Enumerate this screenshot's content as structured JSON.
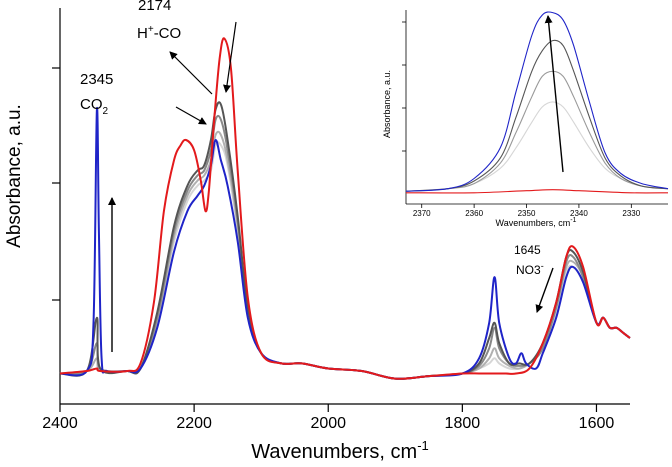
{
  "chart_data": [
    {
      "id": "main",
      "type": "line",
      "title": "",
      "xlabel": "Wavenumbers, cm",
      "xlabel_sup": "-1",
      "ylabel": "Absorbance, a.u.",
      "xlim": [
        2400,
        1550
      ],
      "ylim": [
        -0.06,
        0.72
      ],
      "x_ticks": [
        2400,
        2200,
        2000,
        1800,
        1600
      ],
      "x_tick_labels": [
        "2400",
        "2200",
        "2000",
        "1800",
        "1600"
      ],
      "grid": false,
      "series": [
        {
          "name": "spectrum-1",
          "color": "#d6d6d6",
          "x": [
            2400,
            2360,
            2345,
            2340,
            2300,
            2280,
            2255,
            2230,
            2210,
            2195,
            2185,
            2175,
            2168,
            2160,
            2150,
            2135,
            2120,
            2100,
            2070,
            2040,
            2000,
            1950,
            1900,
            1850,
            1800,
            1775,
            1760,
            1752,
            1745,
            1730,
            1715,
            1700,
            1680,
            1660,
            1645,
            1635,
            1620,
            1600,
            1590,
            1580,
            1570,
            1560,
            1550
          ],
          "y": [
            0.0,
            0.005,
            0.01,
            0.005,
            0.005,
            0.01,
            0.1,
            0.26,
            0.34,
            0.37,
            0.38,
            0.4,
            0.45,
            0.45,
            0.41,
            0.28,
            0.12,
            0.04,
            0.02,
            0.02,
            0.01,
            0.005,
            -0.01,
            -0.005,
            0.0,
            0.01,
            0.02,
            0.03,
            0.02,
            0.01,
            0.01,
            0.02,
            0.05,
            0.12,
            0.2,
            0.21,
            0.18,
            0.1,
            0.11,
            0.09,
            0.09,
            0.08,
            0.07
          ]
        },
        {
          "name": "spectrum-2",
          "color": "#b0b0b0",
          "x": [
            2400,
            2360,
            2345,
            2340,
            2300,
            2280,
            2255,
            2230,
            2210,
            2195,
            2185,
            2175,
            2168,
            2160,
            2150,
            2135,
            2120,
            2100,
            2070,
            2040,
            2000,
            1950,
            1900,
            1850,
            1800,
            1775,
            1760,
            1752,
            1745,
            1730,
            1715,
            1700,
            1680,
            1660,
            1645,
            1635,
            1620,
            1600,
            1590,
            1580,
            1570,
            1560,
            1550
          ],
          "y": [
            0.0,
            0.005,
            0.03,
            0.005,
            0.005,
            0.01,
            0.1,
            0.27,
            0.35,
            0.38,
            0.39,
            0.42,
            0.47,
            0.47,
            0.42,
            0.29,
            0.12,
            0.04,
            0.02,
            0.02,
            0.01,
            0.005,
            -0.01,
            -0.005,
            0.0,
            0.01,
            0.03,
            0.05,
            0.03,
            0.015,
            0.01,
            0.02,
            0.05,
            0.13,
            0.21,
            0.22,
            0.19,
            0.1,
            0.11,
            0.09,
            0.09,
            0.08,
            0.07
          ]
        },
        {
          "name": "spectrum-3",
          "color": "#888888",
          "x": [
            2400,
            2360,
            2345,
            2340,
            2300,
            2280,
            2255,
            2230,
            2210,
            2195,
            2185,
            2175,
            2168,
            2160,
            2150,
            2135,
            2120,
            2100,
            2070,
            2040,
            2000,
            1950,
            1900,
            1850,
            1800,
            1775,
            1760,
            1752,
            1745,
            1730,
            1715,
            1700,
            1680,
            1660,
            1645,
            1635,
            1620,
            1600,
            1590,
            1580,
            1570,
            1560,
            1550
          ],
          "y": [
            0.0,
            0.005,
            0.06,
            0.01,
            0.005,
            0.01,
            0.11,
            0.28,
            0.36,
            0.39,
            0.4,
            0.44,
            0.5,
            0.5,
            0.44,
            0.3,
            0.13,
            0.04,
            0.02,
            0.02,
            0.01,
            0.005,
            -0.01,
            -0.005,
            0.0,
            0.015,
            0.05,
            0.09,
            0.05,
            0.02,
            0.015,
            0.02,
            0.05,
            0.13,
            0.22,
            0.23,
            0.19,
            0.1,
            0.11,
            0.09,
            0.09,
            0.08,
            0.07
          ]
        },
        {
          "name": "spectrum-4",
          "color": "#555555",
          "x": [
            2400,
            2360,
            2345,
            2340,
            2300,
            2280,
            2255,
            2230,
            2210,
            2195,
            2185,
            2175,
            2168,
            2160,
            2150,
            2135,
            2120,
            2100,
            2070,
            2040,
            2000,
            1950,
            1900,
            1850,
            1800,
            1775,
            1760,
            1752,
            1745,
            1730,
            1715,
            1700,
            1680,
            1660,
            1645,
            1635,
            1620,
            1600,
            1590,
            1580,
            1570,
            1560,
            1550
          ],
          "y": [
            0.0,
            0.005,
            0.11,
            0.01,
            0.005,
            0.01,
            0.12,
            0.29,
            0.37,
            0.4,
            0.41,
            0.46,
            0.52,
            0.53,
            0.46,
            0.31,
            0.13,
            0.04,
            0.02,
            0.02,
            0.01,
            0.005,
            -0.01,
            -0.005,
            0.0,
            0.02,
            0.07,
            0.1,
            0.06,
            0.02,
            0.02,
            0.02,
            0.06,
            0.14,
            0.23,
            0.24,
            0.2,
            0.1,
            0.11,
            0.09,
            0.09,
            0.08,
            0.07
          ]
        },
        {
          "name": "spectrum-blue",
          "color": "#1f24c8",
          "x": [
            2400,
            2360,
            2350,
            2345,
            2342,
            2338,
            2330,
            2300,
            2280,
            2255,
            2230,
            2210,
            2195,
            2185,
            2175,
            2168,
            2160,
            2150,
            2135,
            2120,
            2100,
            2070,
            2040,
            2000,
            1950,
            1900,
            1850,
            1800,
            1775,
            1760,
            1752,
            1745,
            1730,
            1720,
            1712,
            1705,
            1690,
            1680,
            1660,
            1645,
            1635,
            1620,
            1600,
            1590,
            1580,
            1570,
            1560,
            1550
          ],
          "y": [
            0.0,
            0.005,
            0.1,
            0.52,
            0.28,
            0.03,
            0.005,
            0.005,
            0.01,
            0.09,
            0.24,
            0.32,
            0.35,
            0.37,
            0.41,
            0.46,
            0.42,
            0.37,
            0.26,
            0.11,
            0.04,
            0.02,
            0.02,
            0.01,
            0.005,
            -0.01,
            -0.005,
            0.0,
            0.03,
            0.1,
            0.19,
            0.1,
            0.03,
            0.02,
            0.04,
            0.02,
            0.01,
            0.04,
            0.11,
            0.19,
            0.21,
            0.18,
            0.1,
            0.11,
            0.09,
            0.09,
            0.08,
            0.07
          ]
        },
        {
          "name": "spectrum-red",
          "color": "#e31a1c",
          "x": [
            2400,
            2360,
            2345,
            2340,
            2300,
            2280,
            2260,
            2245,
            2230,
            2220,
            2212,
            2200,
            2190,
            2183,
            2178,
            2170,
            2162,
            2155,
            2145,
            2135,
            2120,
            2100,
            2070,
            2040,
            2000,
            1950,
            1900,
            1850,
            1800,
            1775,
            1760,
            1750,
            1735,
            1720,
            1700,
            1680,
            1660,
            1645,
            1635,
            1620,
            1600,
            1590,
            1580,
            1570,
            1560,
            1550
          ],
          "y": [
            0.0,
            0.005,
            0.01,
            0.005,
            0.005,
            0.02,
            0.14,
            0.32,
            0.42,
            0.45,
            0.46,
            0.44,
            0.38,
            0.32,
            0.36,
            0.5,
            0.62,
            0.66,
            0.6,
            0.4,
            0.15,
            0.04,
            0.02,
            0.02,
            0.01,
            0.005,
            -0.01,
            -0.005,
            0.0,
            0.0,
            0.0,
            0.0,
            0.0,
            0.0,
            0.01,
            0.06,
            0.14,
            0.23,
            0.25,
            0.21,
            0.1,
            0.11,
            0.09,
            0.09,
            0.08,
            0.07
          ]
        }
      ],
      "annotations": [
        {
          "label": "2345",
          "line2": "CO",
          "line2_sub": "2"
        },
        {
          "label": "2174",
          "line2": "H",
          "line2_sup": "+",
          "line2_rest": "-CO"
        },
        {
          "label": "1645",
          "line2": "NO3",
          "line2_sup": "-"
        }
      ]
    },
    {
      "id": "inset",
      "type": "line",
      "title": "",
      "xlabel": "Wavenumbers, cm",
      "xlabel_sup": "-1",
      "ylabel": "Absorbance, a.u.",
      "xlim": [
        2373,
        2323
      ],
      "ylim": [
        -0.02,
        0.36
      ],
      "x_ticks": [
        2370,
        2360,
        2350,
        2340,
        2330
      ],
      "x_tick_labels": [
        "2370",
        "2360",
        "2350",
        "2340",
        "2330"
      ],
      "grid": false,
      "series": [
        {
          "name": "inset-1",
          "color": "#d6d6d6",
          "x": [
            2373,
            2365,
            2360,
            2355,
            2352,
            2349,
            2347,
            2345,
            2343,
            2341,
            2338,
            2335,
            2332,
            2328,
            2323
          ],
          "y": [
            0.005,
            0.01,
            0.02,
            0.05,
            0.09,
            0.14,
            0.17,
            0.18,
            0.17,
            0.14,
            0.09,
            0.05,
            0.03,
            0.015,
            0.01
          ]
        },
        {
          "name": "inset-2",
          "color": "#9a9a9a",
          "x": [
            2373,
            2365,
            2360,
            2355,
            2352,
            2349,
            2347,
            2345,
            2343,
            2341,
            2338,
            2335,
            2332,
            2328,
            2323
          ],
          "y": [
            0.005,
            0.01,
            0.02,
            0.06,
            0.12,
            0.19,
            0.23,
            0.24,
            0.23,
            0.19,
            0.12,
            0.06,
            0.03,
            0.015,
            0.01
          ]
        },
        {
          "name": "inset-3",
          "color": "#555555",
          "x": [
            2373,
            2365,
            2360,
            2355,
            2352,
            2349,
            2347,
            2345,
            2343,
            2341,
            2338,
            2335,
            2332,
            2328,
            2323
          ],
          "y": [
            0.005,
            0.01,
            0.025,
            0.07,
            0.15,
            0.24,
            0.28,
            0.3,
            0.29,
            0.24,
            0.15,
            0.07,
            0.035,
            0.015,
            0.01
          ]
        },
        {
          "name": "inset-blue",
          "color": "#1f24c8",
          "x": [
            2373,
            2365,
            2360,
            2355,
            2352,
            2349,
            2347,
            2345,
            2343,
            2341,
            2338,
            2335,
            2332,
            2328,
            2323
          ],
          "y": [
            0.005,
            0.01,
            0.03,
            0.09,
            0.2,
            0.31,
            0.35,
            0.355,
            0.34,
            0.29,
            0.18,
            0.08,
            0.04,
            0.02,
            0.01
          ]
        },
        {
          "name": "inset-red",
          "color": "#e31a1c",
          "x": [
            2373,
            2360,
            2350,
            2345,
            2340,
            2330,
            2323
          ],
          "y": [
            0.002,
            0.002,
            0.006,
            0.008,
            0.006,
            0.002,
            0.002
          ]
        }
      ]
    }
  ]
}
